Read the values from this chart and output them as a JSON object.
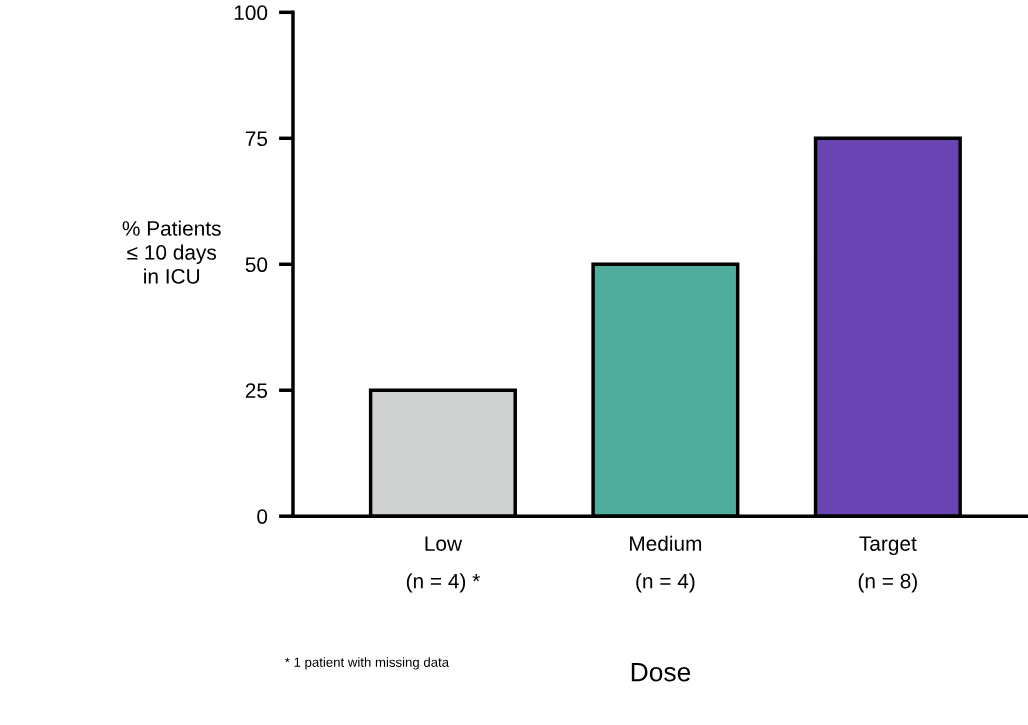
{
  "chart_data": {
    "type": "bar",
    "categories": [
      "Low\n(n = 4) *",
      "Medium\n(n = 4)",
      "Target\n(n = 8)"
    ],
    "values": [
      25,
      50,
      75
    ],
    "colors": [
      "#d0d2d1",
      "#4fae9b",
      "#6b44b4"
    ],
    "ylabel": "% Patients\n≤ 10 days\nin ICU",
    "xlabel": "Dose",
    "annotations": [
      "* 1 patient with missing data"
    ],
    "ylim": [
      0,
      100
    ],
    "yticks": [
      0,
      25,
      50,
      75,
      100
    ],
    "grid": false,
    "legend": false
  }
}
